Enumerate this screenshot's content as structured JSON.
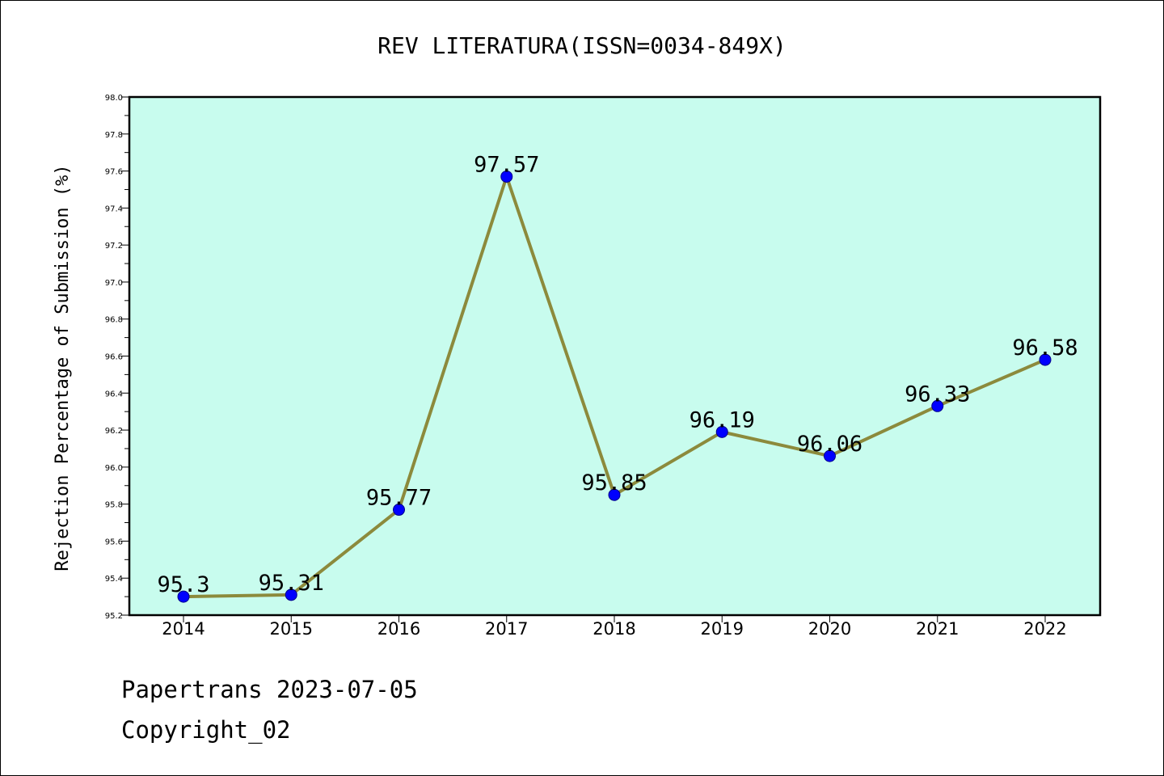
{
  "chart_data": {
    "type": "line",
    "title": "REV LITERATURA(ISSN=0034-849X)",
    "xlabel": "",
    "ylabel": "Rejection Percentage of Submission (%)",
    "categories": [
      "2014",
      "2015",
      "2016",
      "2017",
      "2018",
      "2019",
      "2020",
      "2021",
      "2022"
    ],
    "series": [
      {
        "values": [
          95.3,
          95.31,
          95.77,
          97.57,
          95.85,
          96.19,
          96.06,
          96.33,
          96.58
        ],
        "labels": [
          "95.3",
          "95.31",
          "95.77",
          "97.57",
          "95.85",
          "96.19",
          "96.06",
          "96.33",
          "96.58"
        ]
      }
    ],
    "ylim": [
      95.2,
      98.0
    ],
    "yticks": [
      "95.2",
      "95.4",
      "95.6",
      "95.8",
      "96.0",
      "96.2",
      "96.4",
      "96.6",
      "96.8",
      "97.0",
      "97.2",
      "97.4",
      "97.6",
      "97.8",
      "98.0"
    ],
    "grid": false,
    "legend": "none",
    "colors": {
      "plot_background": "#c8fcee",
      "line": "#8c8a3c",
      "marker": "#0000ff",
      "marker_edge": "#00008b"
    }
  },
  "footer": {
    "line1": "Papertrans 2023-07-05",
    "line2": "Copyright_02"
  }
}
